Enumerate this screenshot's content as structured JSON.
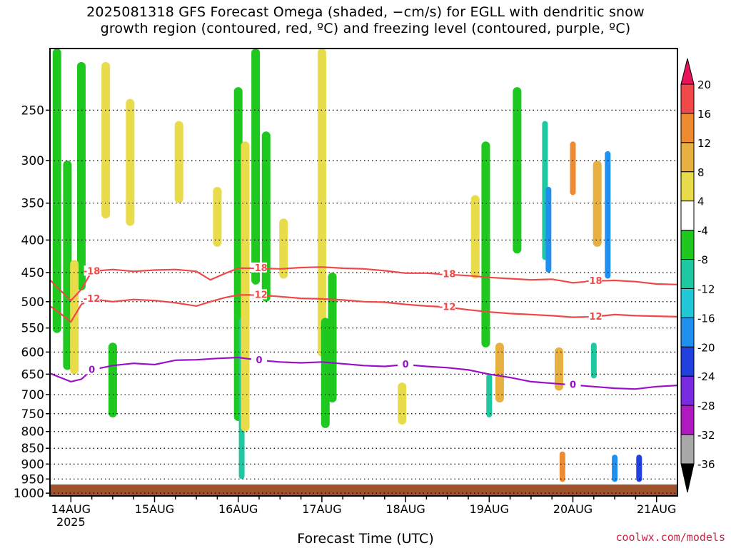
{
  "title_lines": [
    "2025081318 GFS Forecast Omega (shaded, −cm/s) for EGLL with dendritic snow",
    "growth region (contoured, red, ºC) and freezing level (contoured, purple, ºC)"
  ],
  "credit": "coolwx.com/models",
  "chart_data": {
    "type": "heatmap",
    "xlabel": "Forecast Time (UTC)",
    "ylabel": "",
    "x_ticks": [
      "14AUG\n2025",
      "15AUG",
      "16AUG",
      "17AUG",
      "18AUG",
      "19AUG",
      "20AUG",
      "21AUG"
    ],
    "x_tick_hours": [
      0,
      24,
      48,
      72,
      96,
      120,
      144,
      168
    ],
    "xlim_hours": [
      -6,
      174
    ],
    "y_ticks": [
      250,
      300,
      350,
      400,
      450,
      500,
      550,
      600,
      650,
      700,
      750,
      800,
      850,
      900,
      950,
      1000
    ],
    "ylim_hpa": [
      200,
      1010
    ],
    "y_scale": "pressure",
    "grid": true,
    "colorbar": {
      "labels": [
        "20",
        "16",
        "12",
        "8",
        "4",
        "-4",
        "-8",
        "-12",
        "-16",
        "-20",
        "-24",
        "-28",
        "-32",
        "-36"
      ],
      "colors": [
        "#e8145a",
        "#f04848",
        "#ee8a30",
        "#e8b040",
        "#e8dc4a",
        "#ffffff",
        "#1ec81e",
        "#1ec8a0",
        "#20c8d8",
        "#2090f0",
        "#2040e0",
        "#7a2ae0",
        "#b018c0",
        "#a8a8a8",
        "#000000"
      ]
    },
    "contours": [
      {
        "label": "-18",
        "color": "#f04848",
        "hours": [
          -6,
          -3,
          0,
          3,
          6,
          12,
          18,
          24,
          30,
          36,
          40,
          44,
          48,
          54,
          60,
          66,
          72,
          78,
          84,
          90,
          96,
          102,
          108,
          114,
          120,
          126,
          132,
          138,
          144,
          150,
          156,
          162,
          168,
          174
        ],
        "hpa": [
          462,
          480,
          498,
          478,
          448,
          445,
          448,
          446,
          445,
          448,
          462,
          452,
          443,
          443,
          444,
          442,
          441,
          443,
          444,
          447,
          451,
          451,
          453,
          455,
          458,
          460,
          462,
          461,
          467,
          464,
          463,
          465,
          469,
          470
        ]
      },
      {
        "label": "-12",
        "color": "#f04848",
        "hours": [
          -6,
          -3,
          0,
          3,
          6,
          12,
          18,
          24,
          30,
          36,
          40,
          44,
          48,
          54,
          60,
          66,
          72,
          78,
          84,
          90,
          96,
          102,
          108,
          114,
          120,
          126,
          132,
          138,
          144,
          150,
          156,
          162,
          168,
          174
        ],
        "hpa": [
          508,
          522,
          538,
          505,
          495,
          500,
          496,
          498,
          502,
          508,
          500,
          493,
          488,
          488,
          491,
          494,
          495,
          497,
          500,
          501,
          505,
          508,
          510,
          515,
          519,
          522,
          524,
          526,
          529,
          528,
          524,
          526,
          527,
          528
        ]
      },
      {
        "label": "0",
        "color": "#9a10c8",
        "hours": [
          -6,
          -3,
          0,
          3,
          6,
          12,
          18,
          24,
          30,
          36,
          42,
          48,
          54,
          60,
          66,
          72,
          78,
          84,
          90,
          96,
          102,
          108,
          114,
          120,
          126,
          132,
          138,
          144,
          150,
          156,
          162,
          168,
          174
        ],
        "hpa": [
          648,
          658,
          668,
          662,
          640,
          630,
          625,
          628,
          618,
          617,
          614,
          612,
          618,
          622,
          624,
          622,
          626,
          630,
          632,
          628,
          632,
          635,
          640,
          650,
          658,
          668,
          672,
          676,
          680,
          684,
          686,
          680,
          677
        ]
      }
    ],
    "omega_regions": [
      {
        "h": -4,
        "p1": 200,
        "p2": 560,
        "v": -8
      },
      {
        "h": -1,
        "p1": 300,
        "p2": 640,
        "v": -8
      },
      {
        "h": 3,
        "p1": 210,
        "p2": 480,
        "v": -8
      },
      {
        "h": 1,
        "p1": 430,
        "p2": 650,
        "v": 4
      },
      {
        "h": 10,
        "p1": 210,
        "p2": 370,
        "v": 4
      },
      {
        "h": 12,
        "p1": 580,
        "p2": 760,
        "v": -8
      },
      {
        "h": 17,
        "p1": 240,
        "p2": 380,
        "v": 4
      },
      {
        "h": 31,
        "p1": 260,
        "p2": 350,
        "v": 4
      },
      {
        "h": 42,
        "p1": 330,
        "p2": 410,
        "v": 4
      },
      {
        "h": 48,
        "p1": 230,
        "p2": 770,
        "v": -8
      },
      {
        "h": 49,
        "p1": 530,
        "p2": 950,
        "v": -12
      },
      {
        "h": 50,
        "p1": 280,
        "p2": 800,
        "v": 4
      },
      {
        "h": 53,
        "p1": 200,
        "p2": 470,
        "v": -8
      },
      {
        "h": 56,
        "p1": 270,
        "p2": 500,
        "v": -8
      },
      {
        "h": 61,
        "p1": 370,
        "p2": 460,
        "v": 4
      },
      {
        "h": 72,
        "p1": 200,
        "p2": 610,
        "v": 4
      },
      {
        "h": 73,
        "p1": 530,
        "p2": 790,
        "v": -8
      },
      {
        "h": 75,
        "p1": 450,
        "p2": 720,
        "v": -8
      },
      {
        "h": 95,
        "p1": 670,
        "p2": 780,
        "v": 4
      },
      {
        "h": 116,
        "p1": 340,
        "p2": 460,
        "v": 4
      },
      {
        "h": 119,
        "p1": 280,
        "p2": 590,
        "v": -8
      },
      {
        "h": 120,
        "p1": 650,
        "p2": 760,
        "v": -12
      },
      {
        "h": 123,
        "p1": 580,
        "p2": 720,
        "v": 8
      },
      {
        "h": 128,
        "p1": 230,
        "p2": 420,
        "v": -8
      },
      {
        "h": 136,
        "p1": 260,
        "p2": 430,
        "v": -12
      },
      {
        "h": 137,
        "p1": 330,
        "p2": 450,
        "v": -16
      },
      {
        "h": 140,
        "p1": 590,
        "p2": 690,
        "v": 8
      },
      {
        "h": 141,
        "p1": 860,
        "p2": 960,
        "v": 12
      },
      {
        "h": 144,
        "p1": 280,
        "p2": 340,
        "v": 12
      },
      {
        "h": 151,
        "p1": 300,
        "p2": 410,
        "v": 8
      },
      {
        "h": 150,
        "p1": 580,
        "p2": 660,
        "v": -12
      },
      {
        "h": 154,
        "p1": 290,
        "p2": 460,
        "v": -16
      },
      {
        "h": 156,
        "p1": 870,
        "p2": 960,
        "v": -16
      },
      {
        "h": 163,
        "p1": 870,
        "p2": 960,
        "v": -20
      }
    ]
  }
}
